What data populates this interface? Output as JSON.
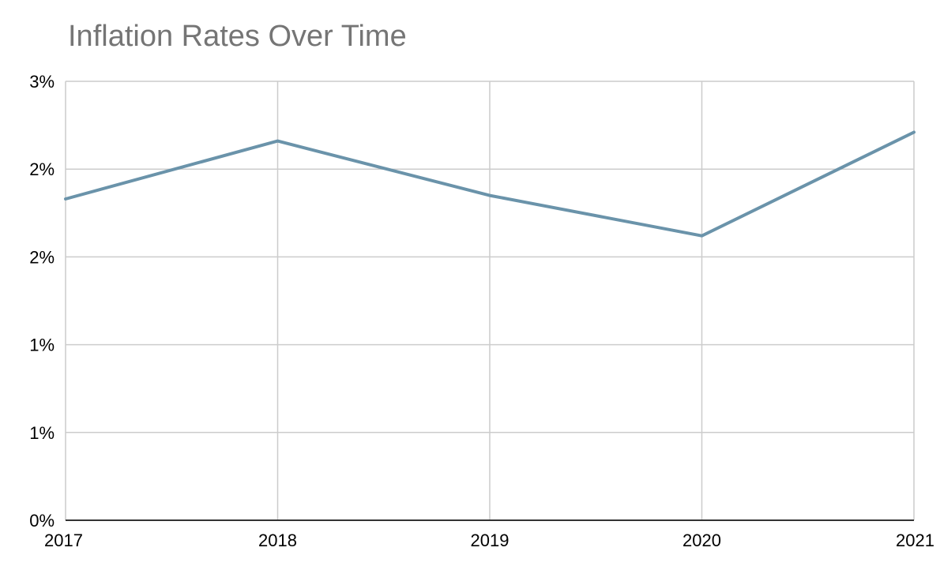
{
  "chart_data": {
    "type": "line",
    "title": "Inflation Rates Over Time",
    "xlabel": "",
    "ylabel": "",
    "categories": [
      "2017",
      "2018",
      "2019",
      "2020",
      "2021"
    ],
    "series": [
      {
        "values": [
          1.83,
          2.16,
          1.85,
          1.62,
          2.21
        ],
        "color": "#6a93aa"
      }
    ],
    "ylim": [
      0,
      2.5
    ],
    "y_ticks": [
      0,
      0.5,
      1.0,
      1.5,
      2.0,
      2.5
    ],
    "y_tick_labels": [
      "0%",
      "1%",
      "1%",
      "2%",
      "2%",
      "3%"
    ],
    "grid": true,
    "grid_color": "#cccccc",
    "axis_color": "#333333"
  }
}
